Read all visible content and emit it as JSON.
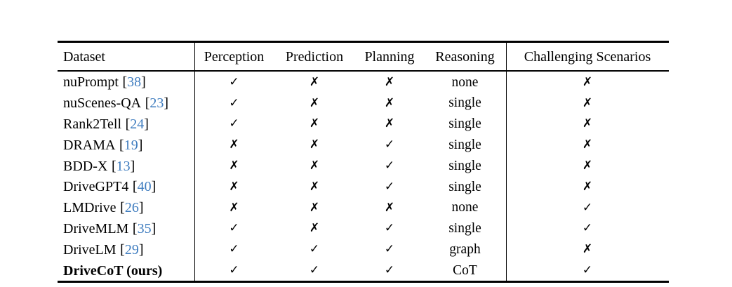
{
  "colors": {
    "citation_link": "#3e7cbf",
    "text": "#000000",
    "rule": "#000000",
    "background": "#ffffff"
  },
  "symbols": {
    "check": "✓",
    "cross": "✗",
    "cite_open": "[",
    "cite_close": "]"
  },
  "table": {
    "header": {
      "dataset": "Dataset",
      "perception": "Perception",
      "prediction": "Prediction",
      "planning": "Planning",
      "reasoning": "Reasoning",
      "challenging": "Challenging Scenarios"
    },
    "rows": [
      {
        "dataset": "nuPrompt",
        "cite": "38",
        "perception": "check",
        "prediction": "cross",
        "planning": "cross",
        "reasoning": "none",
        "challenging": "cross",
        "bold": false
      },
      {
        "dataset": "nuScenes-QA",
        "cite": "23",
        "perception": "check",
        "prediction": "cross",
        "planning": "cross",
        "reasoning": "single",
        "challenging": "cross",
        "bold": false
      },
      {
        "dataset": "Rank2Tell",
        "cite": "24",
        "perception": "check",
        "prediction": "cross",
        "planning": "cross",
        "reasoning": "single",
        "challenging": "cross",
        "bold": false
      },
      {
        "dataset": "DRAMA",
        "cite": "19",
        "perception": "cross",
        "prediction": "cross",
        "planning": "check",
        "reasoning": "single",
        "challenging": "cross",
        "bold": false
      },
      {
        "dataset": "BDD-X",
        "cite": "13",
        "perception": "cross",
        "prediction": "cross",
        "planning": "check",
        "reasoning": "single",
        "challenging": "cross",
        "bold": false
      },
      {
        "dataset": "DriveGPT4",
        "cite": "40",
        "perception": "cross",
        "prediction": "cross",
        "planning": "check",
        "reasoning": "single",
        "challenging": "cross",
        "bold": false
      },
      {
        "dataset": "LMDrive",
        "cite": "26",
        "perception": "cross",
        "prediction": "cross",
        "planning": "cross",
        "reasoning": "none",
        "challenging": "check",
        "bold": false
      },
      {
        "dataset": "DriveMLM",
        "cite": "35",
        "perception": "check",
        "prediction": "cross",
        "planning": "check",
        "reasoning": "single",
        "challenging": "check",
        "bold": false
      },
      {
        "dataset": "DriveLM",
        "cite": "29",
        "perception": "check",
        "prediction": "check",
        "planning": "check",
        "reasoning": "graph",
        "challenging": "cross",
        "bold": false
      },
      {
        "dataset": "DriveCoT (ours)",
        "cite": null,
        "perception": "check",
        "prediction": "check",
        "planning": "check",
        "reasoning": "CoT",
        "challenging": "check",
        "bold": true
      }
    ]
  }
}
